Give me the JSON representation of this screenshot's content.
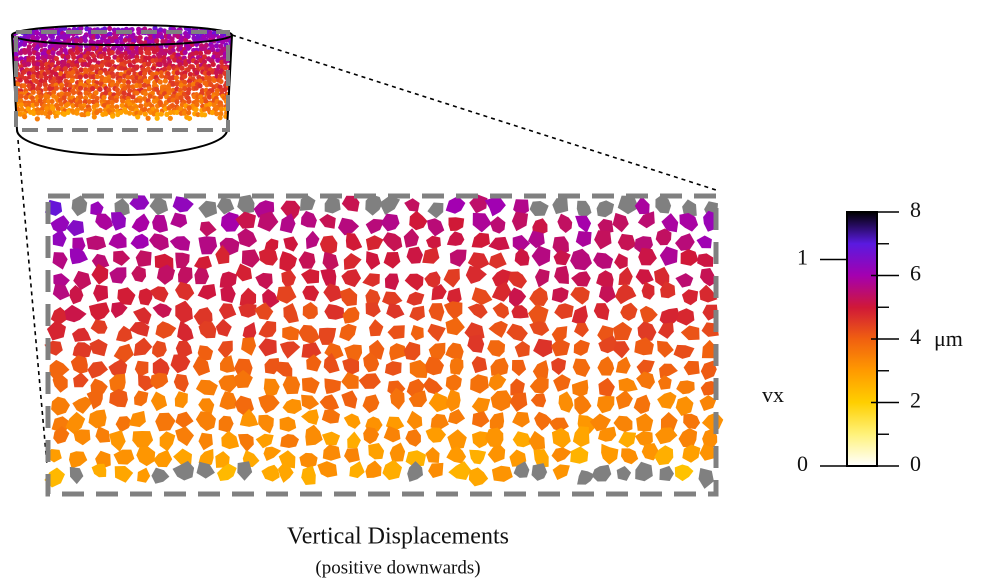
{
  "chart_data": {
    "type": "image",
    "title": "Vertical Displacements",
    "subtitle": "(positive downwards)",
    "y_label": "vx",
    "ylim": [
      0,
      1.23
    ],
    "yticks": [
      0,
      1
    ],
    "colorbar": {
      "label": "μm",
      "lim": [
        0,
        8
      ],
      "ticks": [
        0,
        2,
        4,
        6,
        8
      ],
      "minor_ticks": [
        1,
        3,
        5,
        7
      ],
      "colormap": [
        "#ffffff",
        "#fff27a",
        "#ffcf00",
        "#ff9a00",
        "#f06010",
        "#d01838",
        "#a400b0",
        "#5a1ae0",
        "#000000"
      ]
    }
  }
}
